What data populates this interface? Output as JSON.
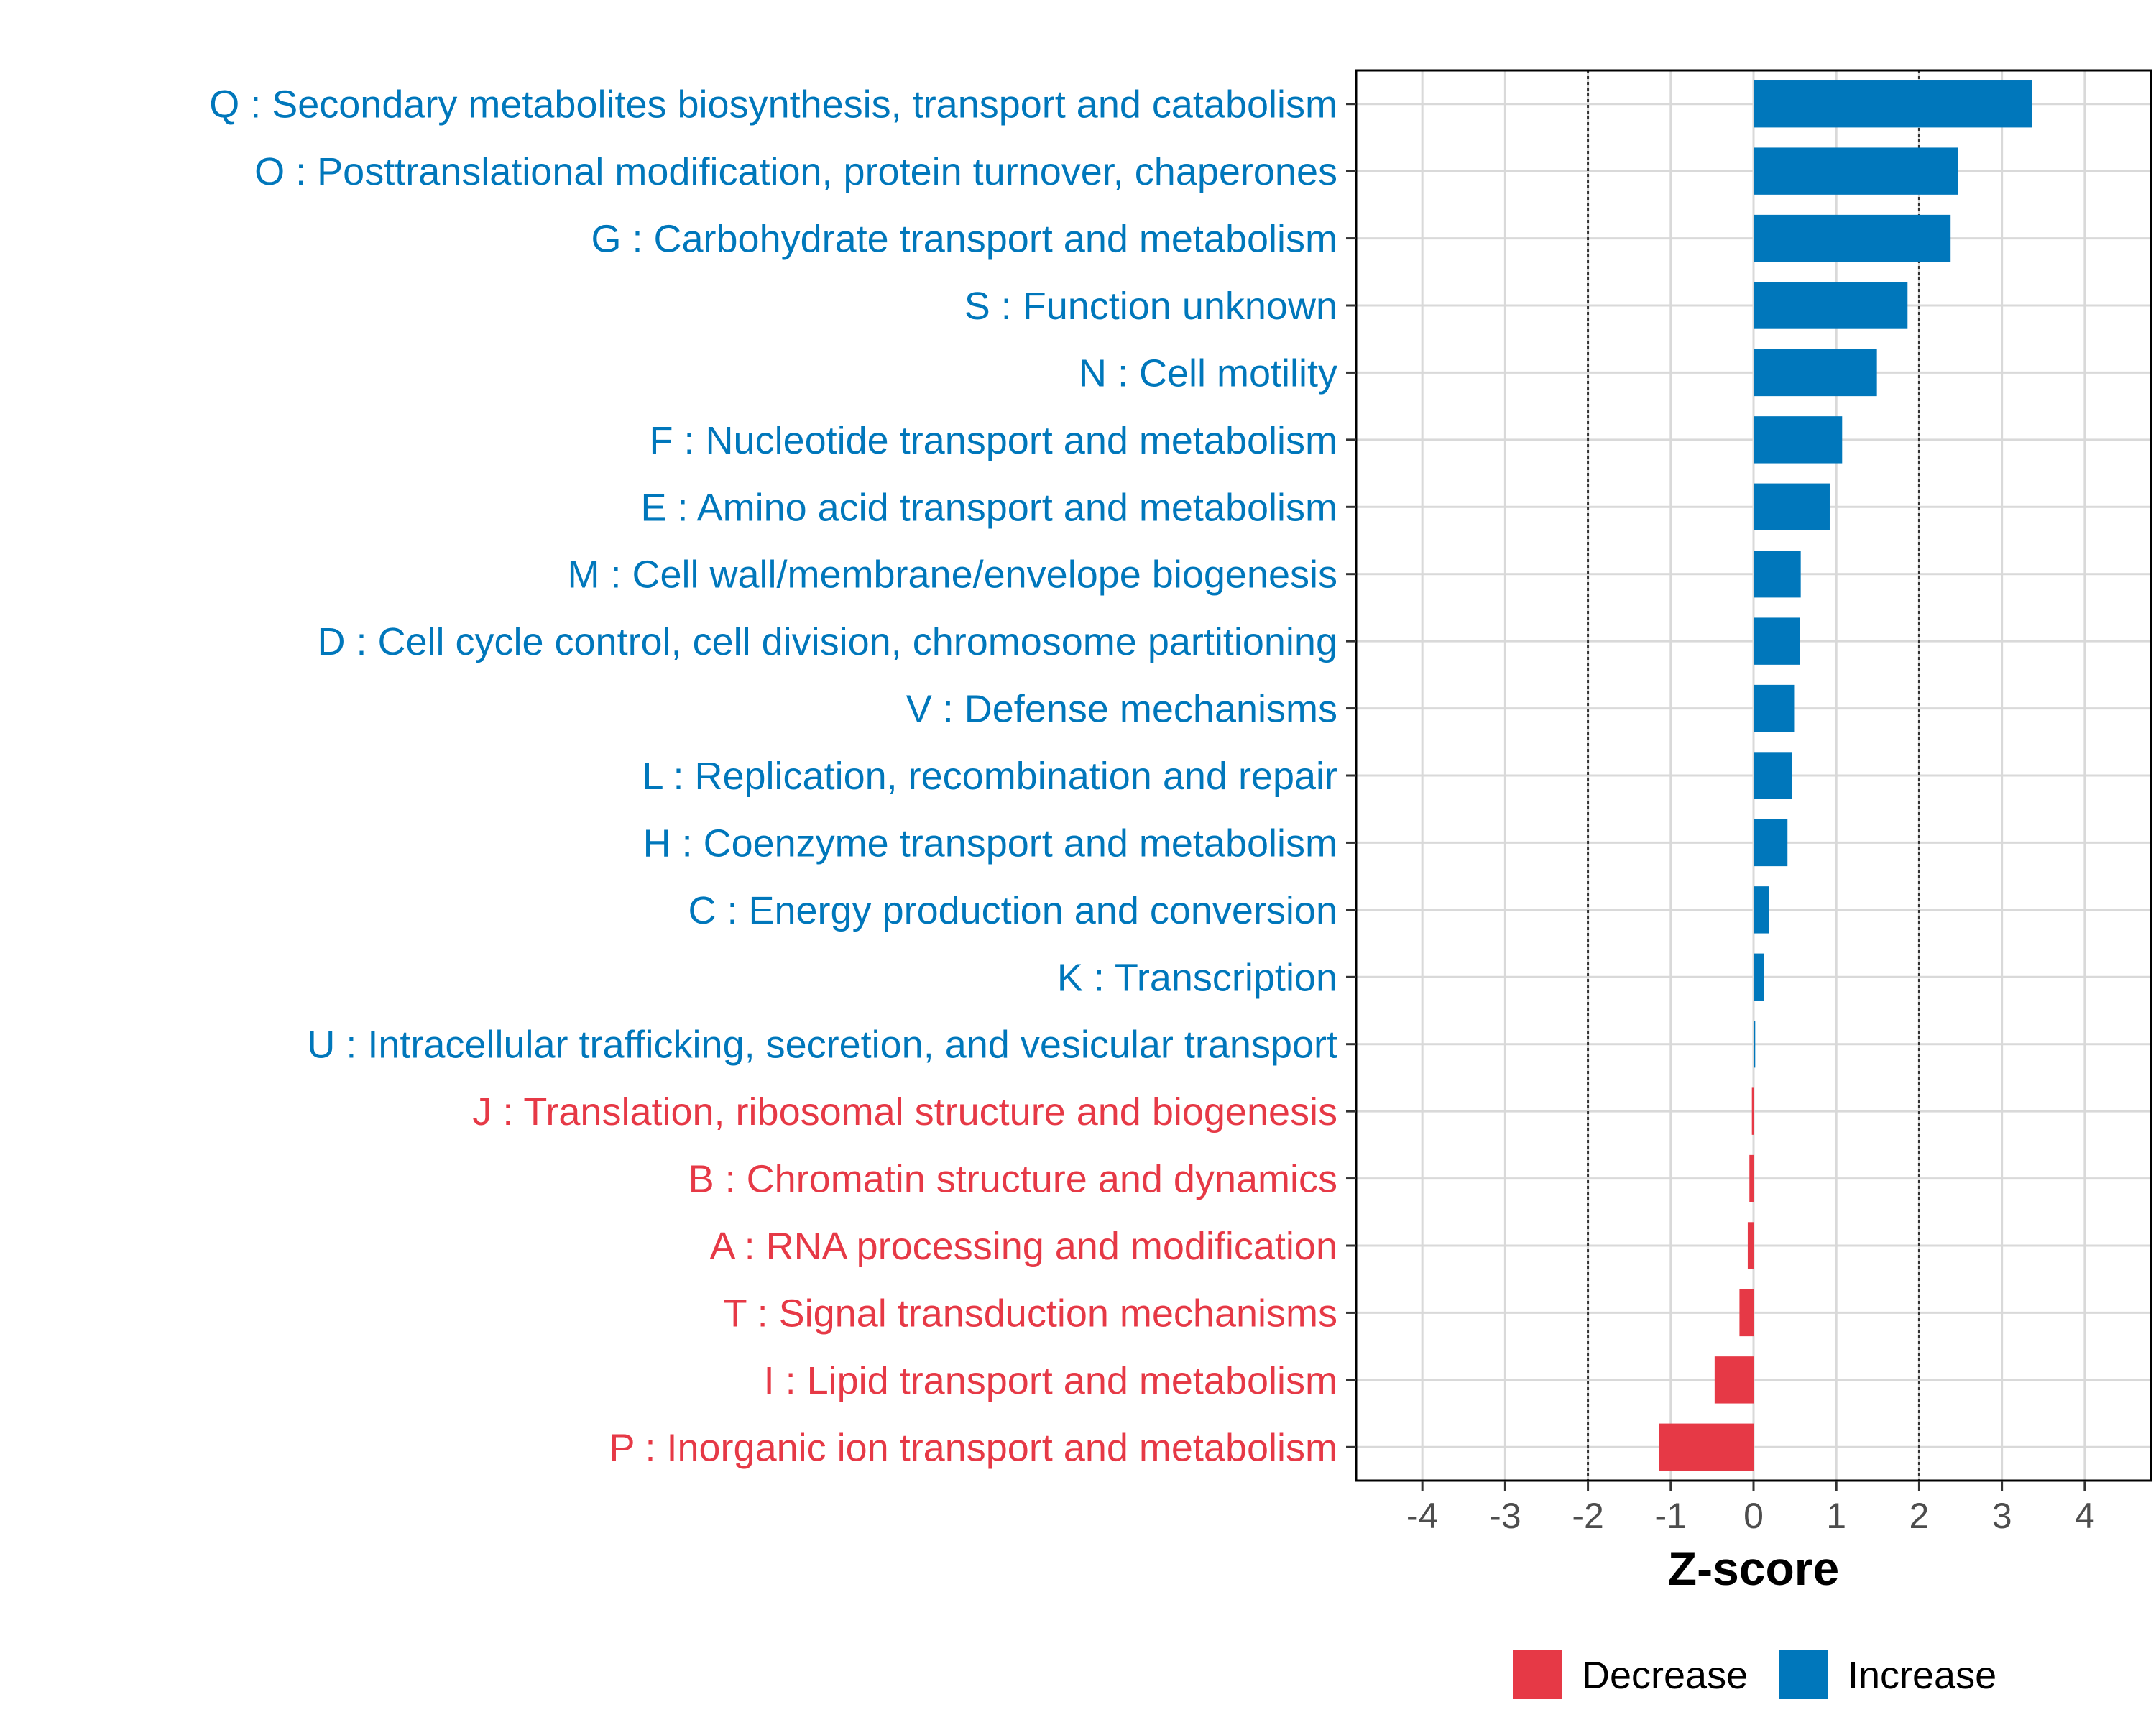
{
  "chart_data": {
    "type": "bar",
    "orientation": "horizontal",
    "categories": [
      "Q : Secondary metabolites biosynthesis, transport and catabolism",
      "O : Posttranslational modification, protein turnover, chaperones",
      "G : Carbohydrate transport and metabolism",
      "S : Function unknown",
      "N : Cell motility",
      "F : Nucleotide transport and metabolism",
      "E : Amino acid transport and metabolism",
      "M : Cell wall/membrane/envelope biogenesis",
      "D : Cell cycle control, cell division, chromosome partitioning",
      "V : Defense mechanisms",
      "L : Replication, recombination and repair",
      "H : Coenzyme transport and metabolism",
      "C : Energy production and conversion",
      "K : Transcription",
      "U : Intracellular trafficking, secretion, and vesicular transport",
      "J : Translation, ribosomal structure and biogenesis",
      "B : Chromatin structure and dynamics",
      "A : RNA processing and modification",
      "T : Signal transduction mechanisms",
      "I : Lipid transport and metabolism",
      "P : Inorganic ion transport and metabolism"
    ],
    "values": [
      3.36,
      2.47,
      2.38,
      1.86,
      1.49,
      1.07,
      0.92,
      0.57,
      0.56,
      0.49,
      0.46,
      0.41,
      0.19,
      0.13,
      0.02,
      -0.02,
      -0.05,
      -0.07,
      -0.17,
      -0.47,
      -1.14
    ],
    "groups": [
      "Increase",
      "Increase",
      "Increase",
      "Increase",
      "Increase",
      "Increase",
      "Increase",
      "Increase",
      "Increase",
      "Increase",
      "Increase",
      "Increase",
      "Increase",
      "Increase",
      "Increase",
      "Decrease",
      "Decrease",
      "Decrease",
      "Decrease",
      "Decrease",
      "Decrease"
    ],
    "xlabel": "Z-score",
    "ylabel": "",
    "xlim": [
      -4.8,
      4.8
    ],
    "x_ticks": [
      -4,
      -3,
      -2,
      -1,
      0,
      1,
      2,
      3,
      4
    ],
    "x_tick_labels": [
      "-4",
      "-3",
      "-2",
      "-1",
      "0",
      "1",
      "2",
      "3",
      "4"
    ],
    "reference_lines": [
      -2,
      2
    ],
    "grid": true,
    "legend": {
      "position": "bottom",
      "entries": [
        {
          "name": "Decrease",
          "color": "#e63946"
        },
        {
          "name": "Increase",
          "color": "#0077bb"
        }
      ]
    },
    "colors": {
      "Increase": "#0077bb",
      "Decrease": "#e63946"
    }
  }
}
